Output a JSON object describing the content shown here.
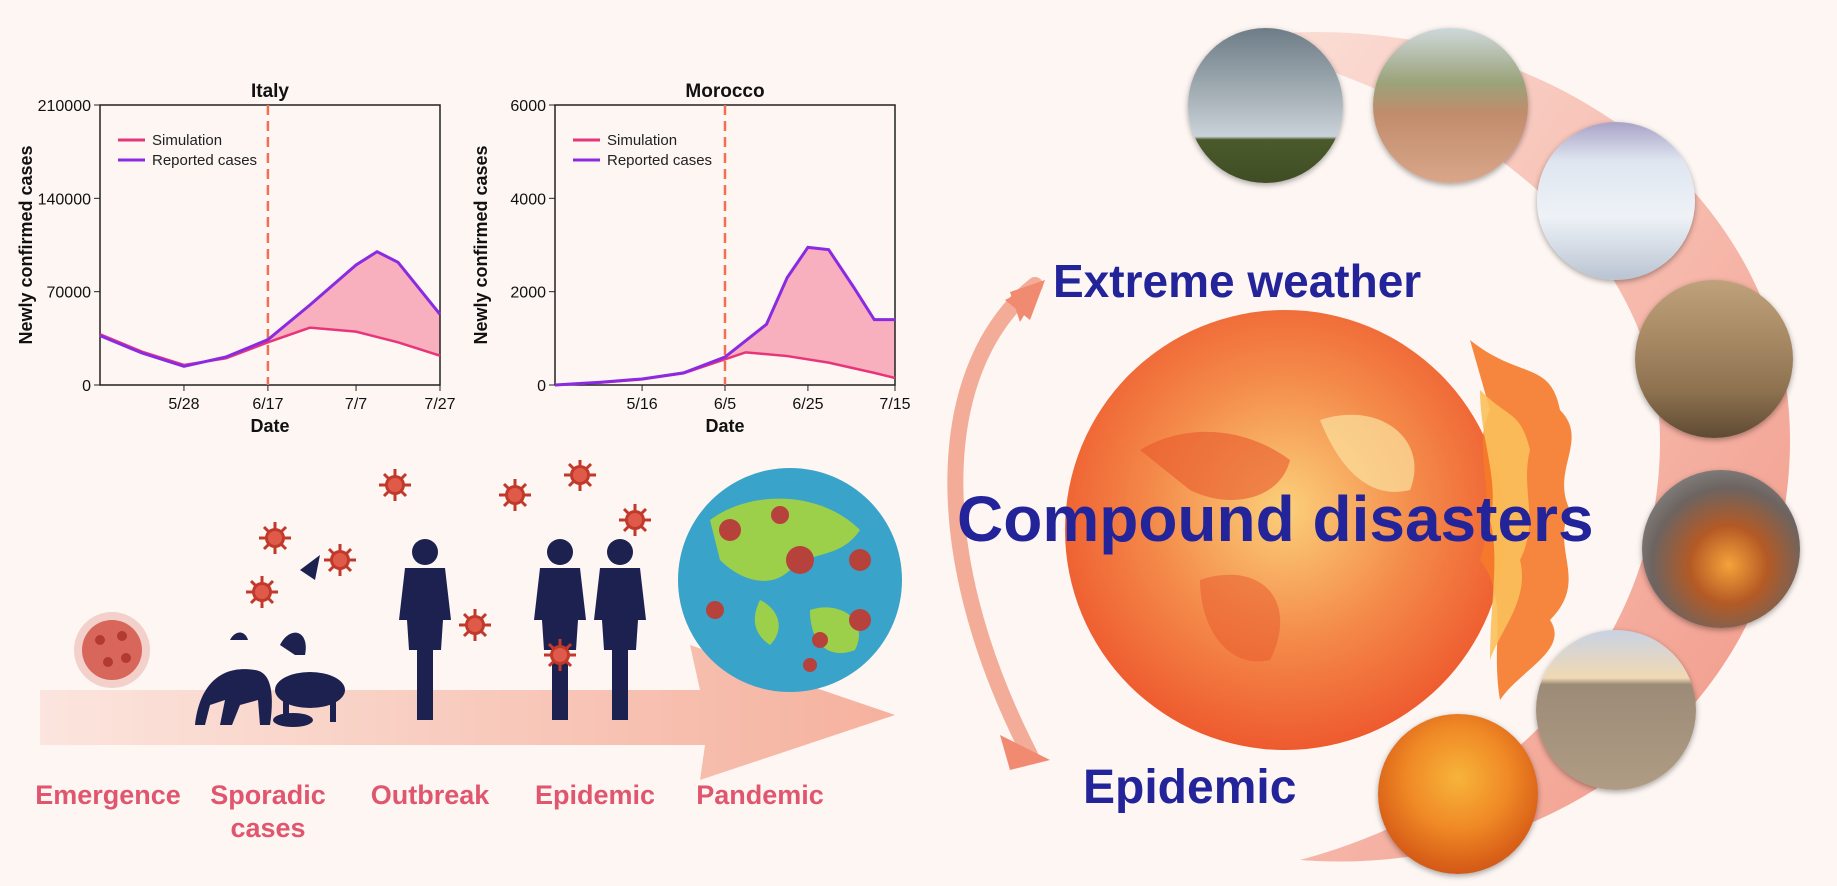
{
  "colors": {
    "simulation": "#e8357a",
    "reported": "#8a2be2",
    "fill": "#f7a9b8",
    "marker": "#f07050",
    "stage_label": "#e0566e",
    "headline": "#23239a"
  },
  "chart_data": [
    {
      "type": "line",
      "title": "Italy",
      "xlabel": "Date",
      "ylabel": "Newly confirmed cases",
      "ylim": [
        0,
        210000
      ],
      "y_ticks": [
        "0",
        "70000",
        "140000",
        "210000"
      ],
      "x_ticks": [
        "5/28",
        "6/17",
        "7/7",
        "7/27"
      ],
      "marker_line_at": "6/17",
      "legend": [
        "Simulation",
        "Reported cases"
      ],
      "legend_placement": "top-left",
      "series": [
        {
          "name": "Simulation",
          "x": [
            "5/8",
            "5/18",
            "5/28",
            "6/7",
            "6/17",
            "6/27",
            "7/7",
            "7/17",
            "7/27"
          ],
          "values": [
            38000,
            25000,
            15000,
            20000,
            32000,
            43000,
            40000,
            32000,
            22000
          ]
        },
        {
          "name": "Reported cases",
          "x": [
            "5/8",
            "5/18",
            "5/28",
            "6/7",
            "6/17",
            "6/27",
            "7/7",
            "7/12",
            "7/17",
            "7/27"
          ],
          "values": [
            37000,
            24000,
            14000,
            21000,
            34000,
            60000,
            90000,
            100000,
            92000,
            53000
          ]
        }
      ]
    },
    {
      "type": "line",
      "title": "Morocco",
      "xlabel": "Date",
      "ylabel": "Newly confirmed cases",
      "ylim": [
        0,
        6000
      ],
      "y_ticks": [
        "0",
        "2000",
        "4000",
        "6000"
      ],
      "x_ticks": [
        "5/16",
        "6/5",
        "6/25",
        "7/15"
      ],
      "marker_line_at": "6/5",
      "legend": [
        "Simulation",
        "Reported cases"
      ],
      "legend_placement": "top-left",
      "series": [
        {
          "name": "Simulation",
          "x": [
            "4/26",
            "5/6",
            "5/16",
            "5/26",
            "6/5",
            "6/10",
            "6/20",
            "6/30",
            "7/10",
            "7/15"
          ],
          "values": [
            0,
            50,
            120,
            250,
            550,
            700,
            620,
            480,
            260,
            150
          ]
        },
        {
          "name": "Reported cases",
          "x": [
            "4/26",
            "5/6",
            "5/16",
            "5/26",
            "6/5",
            "6/15",
            "6/20",
            "6/25",
            "6/30",
            "7/5",
            "7/10",
            "7/15"
          ],
          "values": [
            0,
            60,
            130,
            260,
            600,
            1300,
            2300,
            2950,
            2900,
            2100,
            1400,
            1400
          ]
        }
      ]
    }
  ],
  "stages": [
    "Emergence",
    "Sporadic\ncases",
    "Outbreak",
    "Epidemic",
    "Pandemic"
  ],
  "headline": {
    "top": "Extreme weather",
    "center": "Compound disasters",
    "bottom": "Epidemic"
  },
  "icons": {
    "virus": "virus-icon",
    "animals": "animal-hosts-icon",
    "human": "human-silhouette-icon",
    "globe": "globe-icon",
    "earth": "burning-earth-icon",
    "arrows": "cycle-arrows-icon"
  }
}
